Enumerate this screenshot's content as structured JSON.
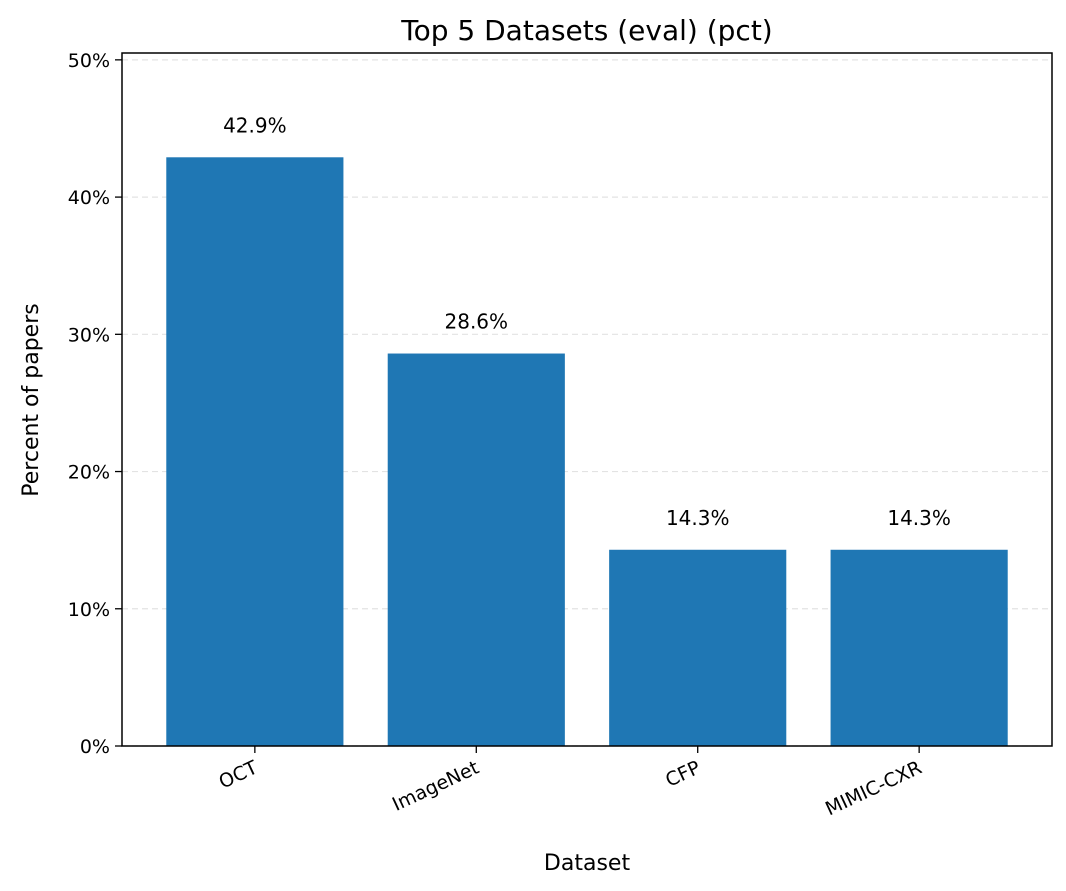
{
  "chart_data": {
    "type": "bar",
    "title": "Top 5 Datasets (eval) (pct)",
    "xlabel": "Dataset",
    "ylabel": "Percent of papers",
    "categories": [
      "OCT",
      "ImageNet",
      "CFP",
      "MIMIC-CXR"
    ],
    "values": [
      42.9,
      28.6,
      14.3,
      14.3
    ],
    "data_labels": [
      "42.9%",
      "28.6%",
      "14.3%",
      "14.3%"
    ],
    "ylim": [
      0,
      50.5
    ],
    "yticks": [
      0,
      10,
      20,
      30,
      40,
      50
    ],
    "ytick_labels": [
      "0%",
      "10%",
      "20%",
      "30%",
      "40%",
      "50%"
    ],
    "grid": "y-dashed",
    "bar_color": "#1f77b4",
    "xtick_rotation_deg": 25
  }
}
